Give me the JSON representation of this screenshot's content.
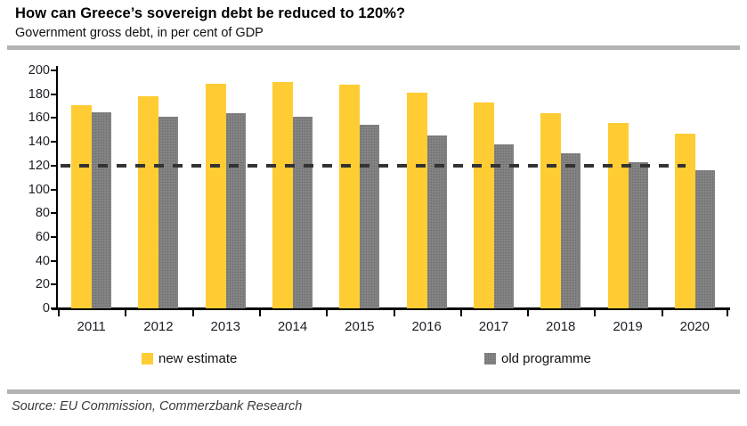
{
  "header": {
    "title": "How can Greece’s sovereign debt be reduced to 120%?",
    "subtitle": "Government gross debt, in per cent of GDP"
  },
  "footer": {
    "source": "Source: EU Commission, Commerzbank Research"
  },
  "colors": {
    "new_estimate": "#FFCC33",
    "old_programme": "#828282",
    "target_line": "#333333",
    "divider": "#B3B3B3",
    "axis": "#000000"
  },
  "chart_data": {
    "type": "bar",
    "title": "How can Greece’s sovereign debt be reduced to 120%?",
    "subtitle": "Government gross debt, in per cent of GDP",
    "xlabel": "",
    "ylabel": "Government gross debt, in per cent of GDP",
    "categories": [
      "2011",
      "2012",
      "2013",
      "2014",
      "2015",
      "2016",
      "2017",
      "2018",
      "2019",
      "2020"
    ],
    "series": [
      {
        "name": "new estimate",
        "color": "#FFCC33",
        "values": [
          171,
          178,
          189,
          190,
          188,
          181,
          173,
          164,
          156,
          147
        ]
      },
      {
        "name": "old programme",
        "color": "#828282",
        "values": [
          165,
          161,
          164,
          161,
          154,
          145,
          138,
          130,
          123,
          116
        ]
      }
    ],
    "target_line": {
      "value": 120,
      "style": "dashed",
      "color": "#333333"
    },
    "ylim": [
      0,
      200
    ],
    "yticks": [
      0,
      20,
      40,
      60,
      80,
      100,
      120,
      140,
      160,
      180,
      200
    ],
    "grid": false,
    "legend_position": "bottom",
    "legend": [
      {
        "label": "new estimate",
        "color": "#FFCC33"
      },
      {
        "label": "old programme",
        "color": "#828282"
      }
    ]
  }
}
